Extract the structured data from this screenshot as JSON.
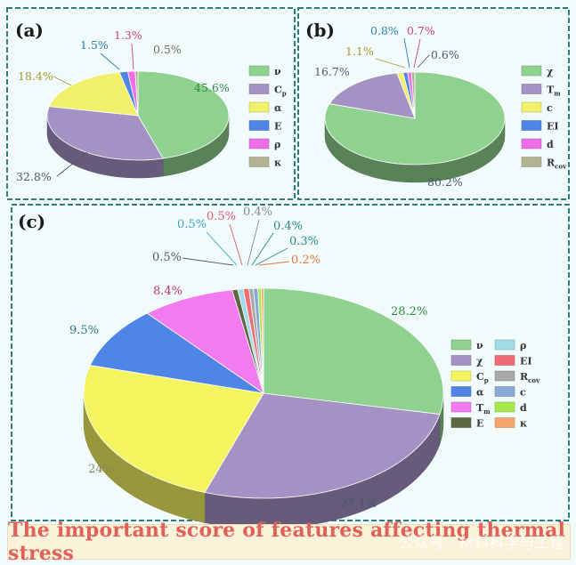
{
  "chart_data": [
    {
      "type": "pie",
      "panel_label": "(a)",
      "labels": [
        "ν",
        "C",
        "α",
        "E",
        "ρ",
        "κ"
      ],
      "label_subscripts": [
        "",
        "p",
        "",
        "",
        "",
        ""
      ],
      "values": [
        45.6,
        32.8,
        18.4,
        1.5,
        1.3,
        0.5
      ],
      "value_labels": [
        "45.6%",
        "32.8%",
        "18.4%",
        "1.5%",
        "1.3%",
        "0.5%"
      ],
      "colors": [
        "#8fd18f",
        "#a592c4",
        "#f1f06a",
        "#4f86e6",
        "#ef6fe6",
        "#b3b394"
      ]
    },
    {
      "type": "pie",
      "panel_label": "(b)",
      "labels": [
        "χ",
        "T",
        "c",
        "EI",
        "d",
        "R"
      ],
      "label_subscripts": [
        "",
        "m",
        "",
        "",
        "",
        "cov"
      ],
      "values": [
        80.2,
        16.7,
        1.1,
        0.8,
        0.7,
        0.6
      ],
      "value_labels": [
        "80.2%",
        "16.7%",
        "1.1%",
        "0.8%",
        "0.7%",
        "0.6%"
      ],
      "colors": [
        "#8fd18f",
        "#a592c4",
        "#f1f06a",
        "#4f86e6",
        "#ef6fe6",
        "#b3b394"
      ]
    },
    {
      "type": "pie",
      "panel_label": "(c)",
      "labels": [
        "ν",
        "χ",
        "C",
        "α",
        "T",
        "E",
        "ρ",
        "EI",
        "R",
        "c",
        "d",
        "κ"
      ],
      "label_subscripts": [
        "",
        "",
        "p",
        "",
        "m",
        "",
        "",
        "",
        "cov",
        "",
        "",
        ""
      ],
      "values": [
        28.2,
        27.1,
        24,
        9.5,
        8.4,
        0.5,
        0.5,
        0.5,
        0.4,
        0.4,
        0.3,
        0.2
      ],
      "value_labels": [
        "28.2%",
        "27.1%",
        "24%",
        "9.5%",
        "8.4%",
        "0.5%",
        "0.5%",
        "0.5%",
        "0.4%",
        "0.4%",
        "0.3%",
        "0.2%"
      ],
      "colors": [
        "#8fd18f",
        "#a592c4",
        "#f4f460",
        "#4f86e6",
        "#f37bf0",
        "#5e6840",
        "#9fdce8",
        "#f06b73",
        "#a9a9a9",
        "#86a9d6",
        "#a6e84d",
        "#f6a46b"
      ]
    }
  ],
  "caption": "The important score of features affecting thermal stress",
  "watermark": "公众号 · 材料科学与工程"
}
